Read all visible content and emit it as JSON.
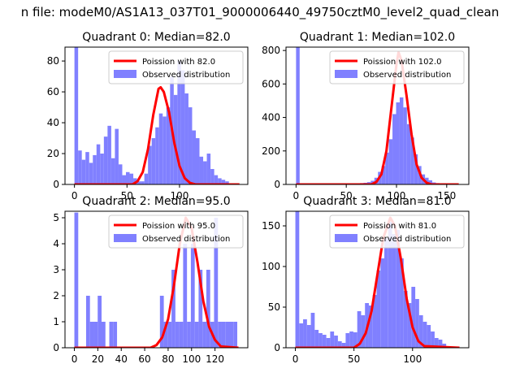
{
  "figure": {
    "title": "n file: modeM0/AS1A13_037T01_9000006440_49750cztM0_level2_quad_clean"
  },
  "colors": {
    "hist": "#8080ff",
    "curve": "#ff0000",
    "axis": "#000000"
  },
  "chart_data": [
    {
      "type": "bar",
      "title": "Quadrant 0: Median=82.0",
      "legend": {
        "curve_label": "Poission with 82.0",
        "hist_label": "Observed distribution",
        "location": "top-right"
      },
      "xlim": [
        -9,
        165
      ],
      "ylim": [
        0,
        89
      ],
      "xticks": [
        0,
        50,
        100
      ],
      "yticks": [
        0,
        20,
        40,
        60,
        80
      ],
      "bin_width": 3.5,
      "bins": [
        {
          "x": 0,
          "y": 89
        },
        {
          "x": 3.5,
          "y": 22
        },
        {
          "x": 7,
          "y": 16
        },
        {
          "x": 10.5,
          "y": 21
        },
        {
          "x": 14,
          "y": 14
        },
        {
          "x": 17.5,
          "y": 19
        },
        {
          "x": 21,
          "y": 26
        },
        {
          "x": 24.5,
          "y": 20
        },
        {
          "x": 28,
          "y": 31
        },
        {
          "x": 31.5,
          "y": 38
        },
        {
          "x": 35,
          "y": 17
        },
        {
          "x": 38.5,
          "y": 36
        },
        {
          "x": 42,
          "y": 13
        },
        {
          "x": 45.5,
          "y": 6
        },
        {
          "x": 49,
          "y": 8
        },
        {
          "x": 52.5,
          "y": 7
        },
        {
          "x": 56,
          "y": 4
        },
        {
          "x": 59.5,
          "y": 2
        },
        {
          "x": 63,
          "y": 2
        },
        {
          "x": 66.5,
          "y": 7
        },
        {
          "x": 70,
          "y": 25
        },
        {
          "x": 73.5,
          "y": 30
        },
        {
          "x": 77,
          "y": 37
        },
        {
          "x": 80.5,
          "y": 46
        },
        {
          "x": 84,
          "y": 44
        },
        {
          "x": 87.5,
          "y": 50
        },
        {
          "x": 91,
          "y": 70
        },
        {
          "x": 94.5,
          "y": 58
        },
        {
          "x": 98,
          "y": 80
        },
        {
          "x": 101.5,
          "y": 74
        },
        {
          "x": 105,
          "y": 59
        },
        {
          "x": 108.5,
          "y": 50
        },
        {
          "x": 112,
          "y": 35
        },
        {
          "x": 115.5,
          "y": 30
        },
        {
          "x": 119,
          "y": 18
        },
        {
          "x": 122.5,
          "y": 15
        },
        {
          "x": 126,
          "y": 20
        },
        {
          "x": 129.5,
          "y": 10
        },
        {
          "x": 133,
          "y": 6
        },
        {
          "x": 136.5,
          "y": 4
        },
        {
          "x": 140,
          "y": 3
        },
        {
          "x": 143.5,
          "y": 2
        }
      ],
      "curve": {
        "x": [
          0,
          55,
          60,
          65,
          70,
          75,
          80,
          82,
          85,
          90,
          95,
          100,
          105,
          110,
          115,
          157
        ],
        "y": [
          0,
          0,
          2,
          8,
          23,
          45,
          62,
          63,
          60,
          47,
          27,
          12,
          4,
          1,
          0,
          0
        ]
      }
    },
    {
      "type": "bar",
      "title": "Quadrant 1: Median=102.0",
      "legend": {
        "curve_label": "Poission with 102.0",
        "hist_label": "Observed distribution",
        "location": "top-right"
      },
      "xlim": [
        -10,
        172
      ],
      "ylim": [
        0,
        820
      ],
      "xticks": [
        0,
        50,
        100,
        150
      ],
      "yticks": [
        0,
        200,
        400,
        600,
        800
      ],
      "bin_width": 3.6,
      "bins": [
        {
          "x": 0,
          "y": 820
        },
        {
          "x": 3.6,
          "y": 3
        },
        {
          "x": 60,
          "y": 5
        },
        {
          "x": 63.6,
          "y": 8
        },
        {
          "x": 67.2,
          "y": 10
        },
        {
          "x": 70.8,
          "y": 14
        },
        {
          "x": 74.4,
          "y": 22
        },
        {
          "x": 78,
          "y": 40
        },
        {
          "x": 81.6,
          "y": 75
        },
        {
          "x": 85.2,
          "y": 110
        },
        {
          "x": 88.8,
          "y": 190
        },
        {
          "x": 92.4,
          "y": 270
        },
        {
          "x": 96,
          "y": 420
        },
        {
          "x": 99.6,
          "y": 490
        },
        {
          "x": 103.2,
          "y": 520
        },
        {
          "x": 106.8,
          "y": 460
        },
        {
          "x": 110.4,
          "y": 360
        },
        {
          "x": 114,
          "y": 280
        },
        {
          "x": 117.6,
          "y": 180
        },
        {
          "x": 121.2,
          "y": 110
        },
        {
          "x": 124.8,
          "y": 60
        },
        {
          "x": 128.4,
          "y": 40
        },
        {
          "x": 132,
          "y": 25
        },
        {
          "x": 135.6,
          "y": 12
        },
        {
          "x": 139.2,
          "y": 8
        },
        {
          "x": 142.8,
          "y": 5
        }
      ],
      "curve": {
        "x": [
          0,
          75,
          80,
          85,
          90,
          95,
          100,
          102,
          105,
          110,
          115,
          120,
          125,
          130,
          135,
          162
        ],
        "y": [
          0,
          0,
          15,
          60,
          200,
          460,
          720,
          790,
          740,
          530,
          300,
          120,
          40,
          10,
          0,
          0
        ]
      }
    },
    {
      "type": "bar",
      "title": "Quadrant 2: Median=95.0",
      "legend": {
        "curve_label": "Poission with 95.0",
        "hist_label": "Observed distribution",
        "location": "top-right"
      },
      "xlim": [
        -8,
        148
      ],
      "ylim": [
        0,
        5.25
      ],
      "xticks": [
        0,
        20,
        40,
        60,
        80,
        100,
        120
      ],
      "yticks": [
        0,
        1,
        2,
        3,
        4,
        5
      ],
      "bin_width": 3.3,
      "bins": [
        {
          "x": 0,
          "y": 5.2
        },
        {
          "x": 10,
          "y": 2
        },
        {
          "x": 13.3,
          "y": 1
        },
        {
          "x": 16.6,
          "y": 1
        },
        {
          "x": 19.9,
          "y": 2
        },
        {
          "x": 23.2,
          "y": 1
        },
        {
          "x": 29.8,
          "y": 1
        },
        {
          "x": 33.1,
          "y": 1
        },
        {
          "x": 73,
          "y": 2
        },
        {
          "x": 76.3,
          "y": 1
        },
        {
          "x": 79.6,
          "y": 1
        },
        {
          "x": 82.9,
          "y": 3
        },
        {
          "x": 86.2,
          "y": 1
        },
        {
          "x": 89.5,
          "y": 1
        },
        {
          "x": 92.8,
          "y": 4
        },
        {
          "x": 96.1,
          "y": 1
        },
        {
          "x": 99.4,
          "y": 4
        },
        {
          "x": 102.7,
          "y": 1
        },
        {
          "x": 106,
          "y": 3
        },
        {
          "x": 109.3,
          "y": 1
        },
        {
          "x": 112.6,
          "y": 3
        },
        {
          "x": 115.9,
          "y": 1
        },
        {
          "x": 119.2,
          "y": 5
        },
        {
          "x": 122.5,
          "y": 1
        },
        {
          "x": 125.8,
          "y": 1
        },
        {
          "x": 129.1,
          "y": 1
        },
        {
          "x": 132.4,
          "y": 1
        },
        {
          "x": 135.7,
          "y": 1
        }
      ],
      "curve": {
        "x": [
          0,
          65,
          70,
          75,
          80,
          85,
          90,
          95,
          100,
          105,
          110,
          115,
          120,
          125,
          140
        ],
        "y": [
          0,
          0,
          0.1,
          0.4,
          1.1,
          2.4,
          4.0,
          5.0,
          4.6,
          3.3,
          1.8,
          0.8,
          0.3,
          0.05,
          0
        ]
      }
    },
    {
      "type": "bar",
      "title": "Quadrant 3: Median=81.0",
      "legend": {
        "curve_label": "Poission with 81.0",
        "hist_label": "Observed distribution",
        "location": "top-right"
      },
      "xlim": [
        -8,
        148
      ],
      "ylim": [
        0,
        168
      ],
      "xticks": [
        0,
        50,
        100
      ],
      "yticks": [
        0,
        50,
        100,
        150
      ],
      "bin_width": 3.3,
      "bins": [
        {
          "x": 0,
          "y": 168
        },
        {
          "x": 3.3,
          "y": 30
        },
        {
          "x": 6.6,
          "y": 35
        },
        {
          "x": 9.9,
          "y": 28
        },
        {
          "x": 13.2,
          "y": 43
        },
        {
          "x": 16.5,
          "y": 22
        },
        {
          "x": 19.8,
          "y": 18
        },
        {
          "x": 23.1,
          "y": 16
        },
        {
          "x": 26.4,
          "y": 12
        },
        {
          "x": 29.7,
          "y": 20
        },
        {
          "x": 33,
          "y": 15
        },
        {
          "x": 36.3,
          "y": 8
        },
        {
          "x": 39.6,
          "y": 6
        },
        {
          "x": 42.9,
          "y": 18
        },
        {
          "x": 46.2,
          "y": 20
        },
        {
          "x": 49.5,
          "y": 19
        },
        {
          "x": 52.8,
          "y": 45
        },
        {
          "x": 56.1,
          "y": 40
        },
        {
          "x": 59.4,
          "y": 55
        },
        {
          "x": 62.7,
          "y": 52
        },
        {
          "x": 66,
          "y": 65
        },
        {
          "x": 69.3,
          "y": 95
        },
        {
          "x": 72.6,
          "y": 110
        },
        {
          "x": 75.9,
          "y": 135
        },
        {
          "x": 79.2,
          "y": 155
        },
        {
          "x": 82.5,
          "y": 140
        },
        {
          "x": 85.8,
          "y": 145
        },
        {
          "x": 89.1,
          "y": 110
        },
        {
          "x": 92.4,
          "y": 70
        },
        {
          "x": 95.7,
          "y": 55
        },
        {
          "x": 99,
          "y": 75
        },
        {
          "x": 102.3,
          "y": 60
        },
        {
          "x": 105.6,
          "y": 40
        },
        {
          "x": 108.9,
          "y": 32
        },
        {
          "x": 112.2,
          "y": 28
        },
        {
          "x": 115.5,
          "y": 20
        },
        {
          "x": 118.8,
          "y": 12
        },
        {
          "x": 122.1,
          "y": 10
        },
        {
          "x": 125.4,
          "y": 5
        }
      ],
      "curve": {
        "x": [
          0,
          50,
          55,
          60,
          65,
          70,
          75,
          81,
          85,
          90,
          95,
          100,
          105,
          110,
          140
        ],
        "y": [
          0,
          0,
          5,
          18,
          45,
          90,
          135,
          160,
          150,
          110,
          60,
          25,
          8,
          2,
          0
        ]
      }
    }
  ]
}
